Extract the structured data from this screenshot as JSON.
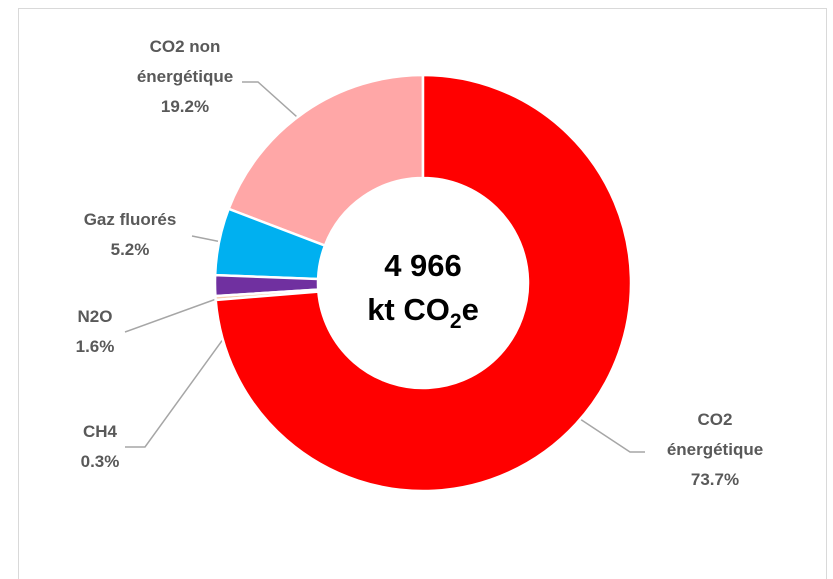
{
  "chart_data": {
    "type": "donut",
    "center_text": {
      "total": "4 966",
      "unit": [
        "kt CO",
        "2",
        "e"
      ]
    },
    "categories": [
      [
        "CO2",
        "énergétique"
      ],
      [
        "CH4"
      ],
      [
        "N2O"
      ],
      [
        "Gaz fluorés"
      ],
      [
        "CO2 non",
        "énergétique"
      ]
    ],
    "values": [
      73.7,
      0.3,
      1.6,
      5.2,
      19.2
    ],
    "value_labels": [
      "73.7%",
      "0.3%",
      "1.6%",
      "5.2%",
      "19.2%"
    ],
    "colors": [
      "#ff0000",
      "#f8cbad",
      "#7030a0",
      "#00b0f0",
      "#ffa7a7"
    ]
  }
}
